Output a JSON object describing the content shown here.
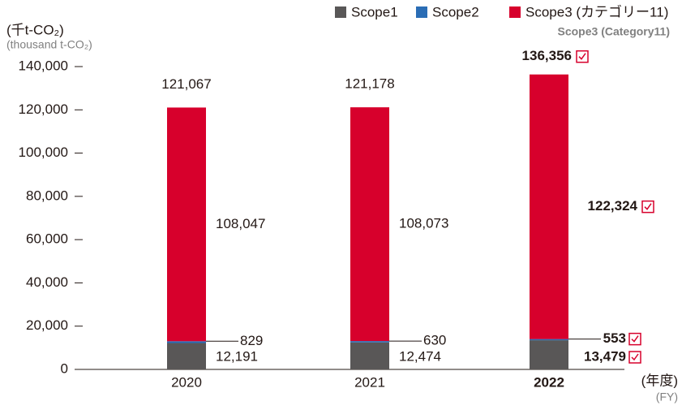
{
  "chart_data": {
    "type": "stacked_bar",
    "unit_label": "(千t-CO₂)",
    "unit_label_en": "(thousand t-CO₂)",
    "x_label": "(年度)",
    "x_label_en": "(FY)",
    "legend_note": "Scope3 (Category11)",
    "categories": [
      "2020",
      "2021",
      "2022"
    ],
    "series": [
      {
        "name": "Scope1",
        "color": "#595757",
        "values": [
          12191,
          12474,
          13479
        ],
        "value_labels": [
          "12,191",
          "12,474",
          "13,479"
        ]
      },
      {
        "name": "Scope2",
        "color": "#2a6db5",
        "values": [
          829,
          630,
          553
        ],
        "value_labels": [
          "829",
          "630",
          "553"
        ]
      },
      {
        "name": "Scope3 (カテゴリー11)",
        "color": "#d7002c",
        "values": [
          108047,
          108073,
          122324
        ],
        "value_labels": [
          "108,047",
          "108,073",
          "122,324"
        ]
      }
    ],
    "totals": {
      "values": [
        121067,
        121178,
        136356
      ],
      "value_labels": [
        "121,067",
        "121,178",
        "136,356"
      ]
    },
    "ylim": [
      0,
      140000
    ],
    "yticks": [
      0,
      {
        "value": 20000,
        "label": "20,000"
      },
      {
        "value": 40000,
        "label": "40,000"
      },
      {
        "value": 60000,
        "label": "60,000"
      },
      {
        "value": 80000,
        "label": "80,000"
      },
      {
        "value": 100000,
        "label": "100,000"
      },
      {
        "value": 120000,
        "label": "120,000"
      },
      {
        "value": 140000,
        "label": "140,000"
      }
    ]
  }
}
